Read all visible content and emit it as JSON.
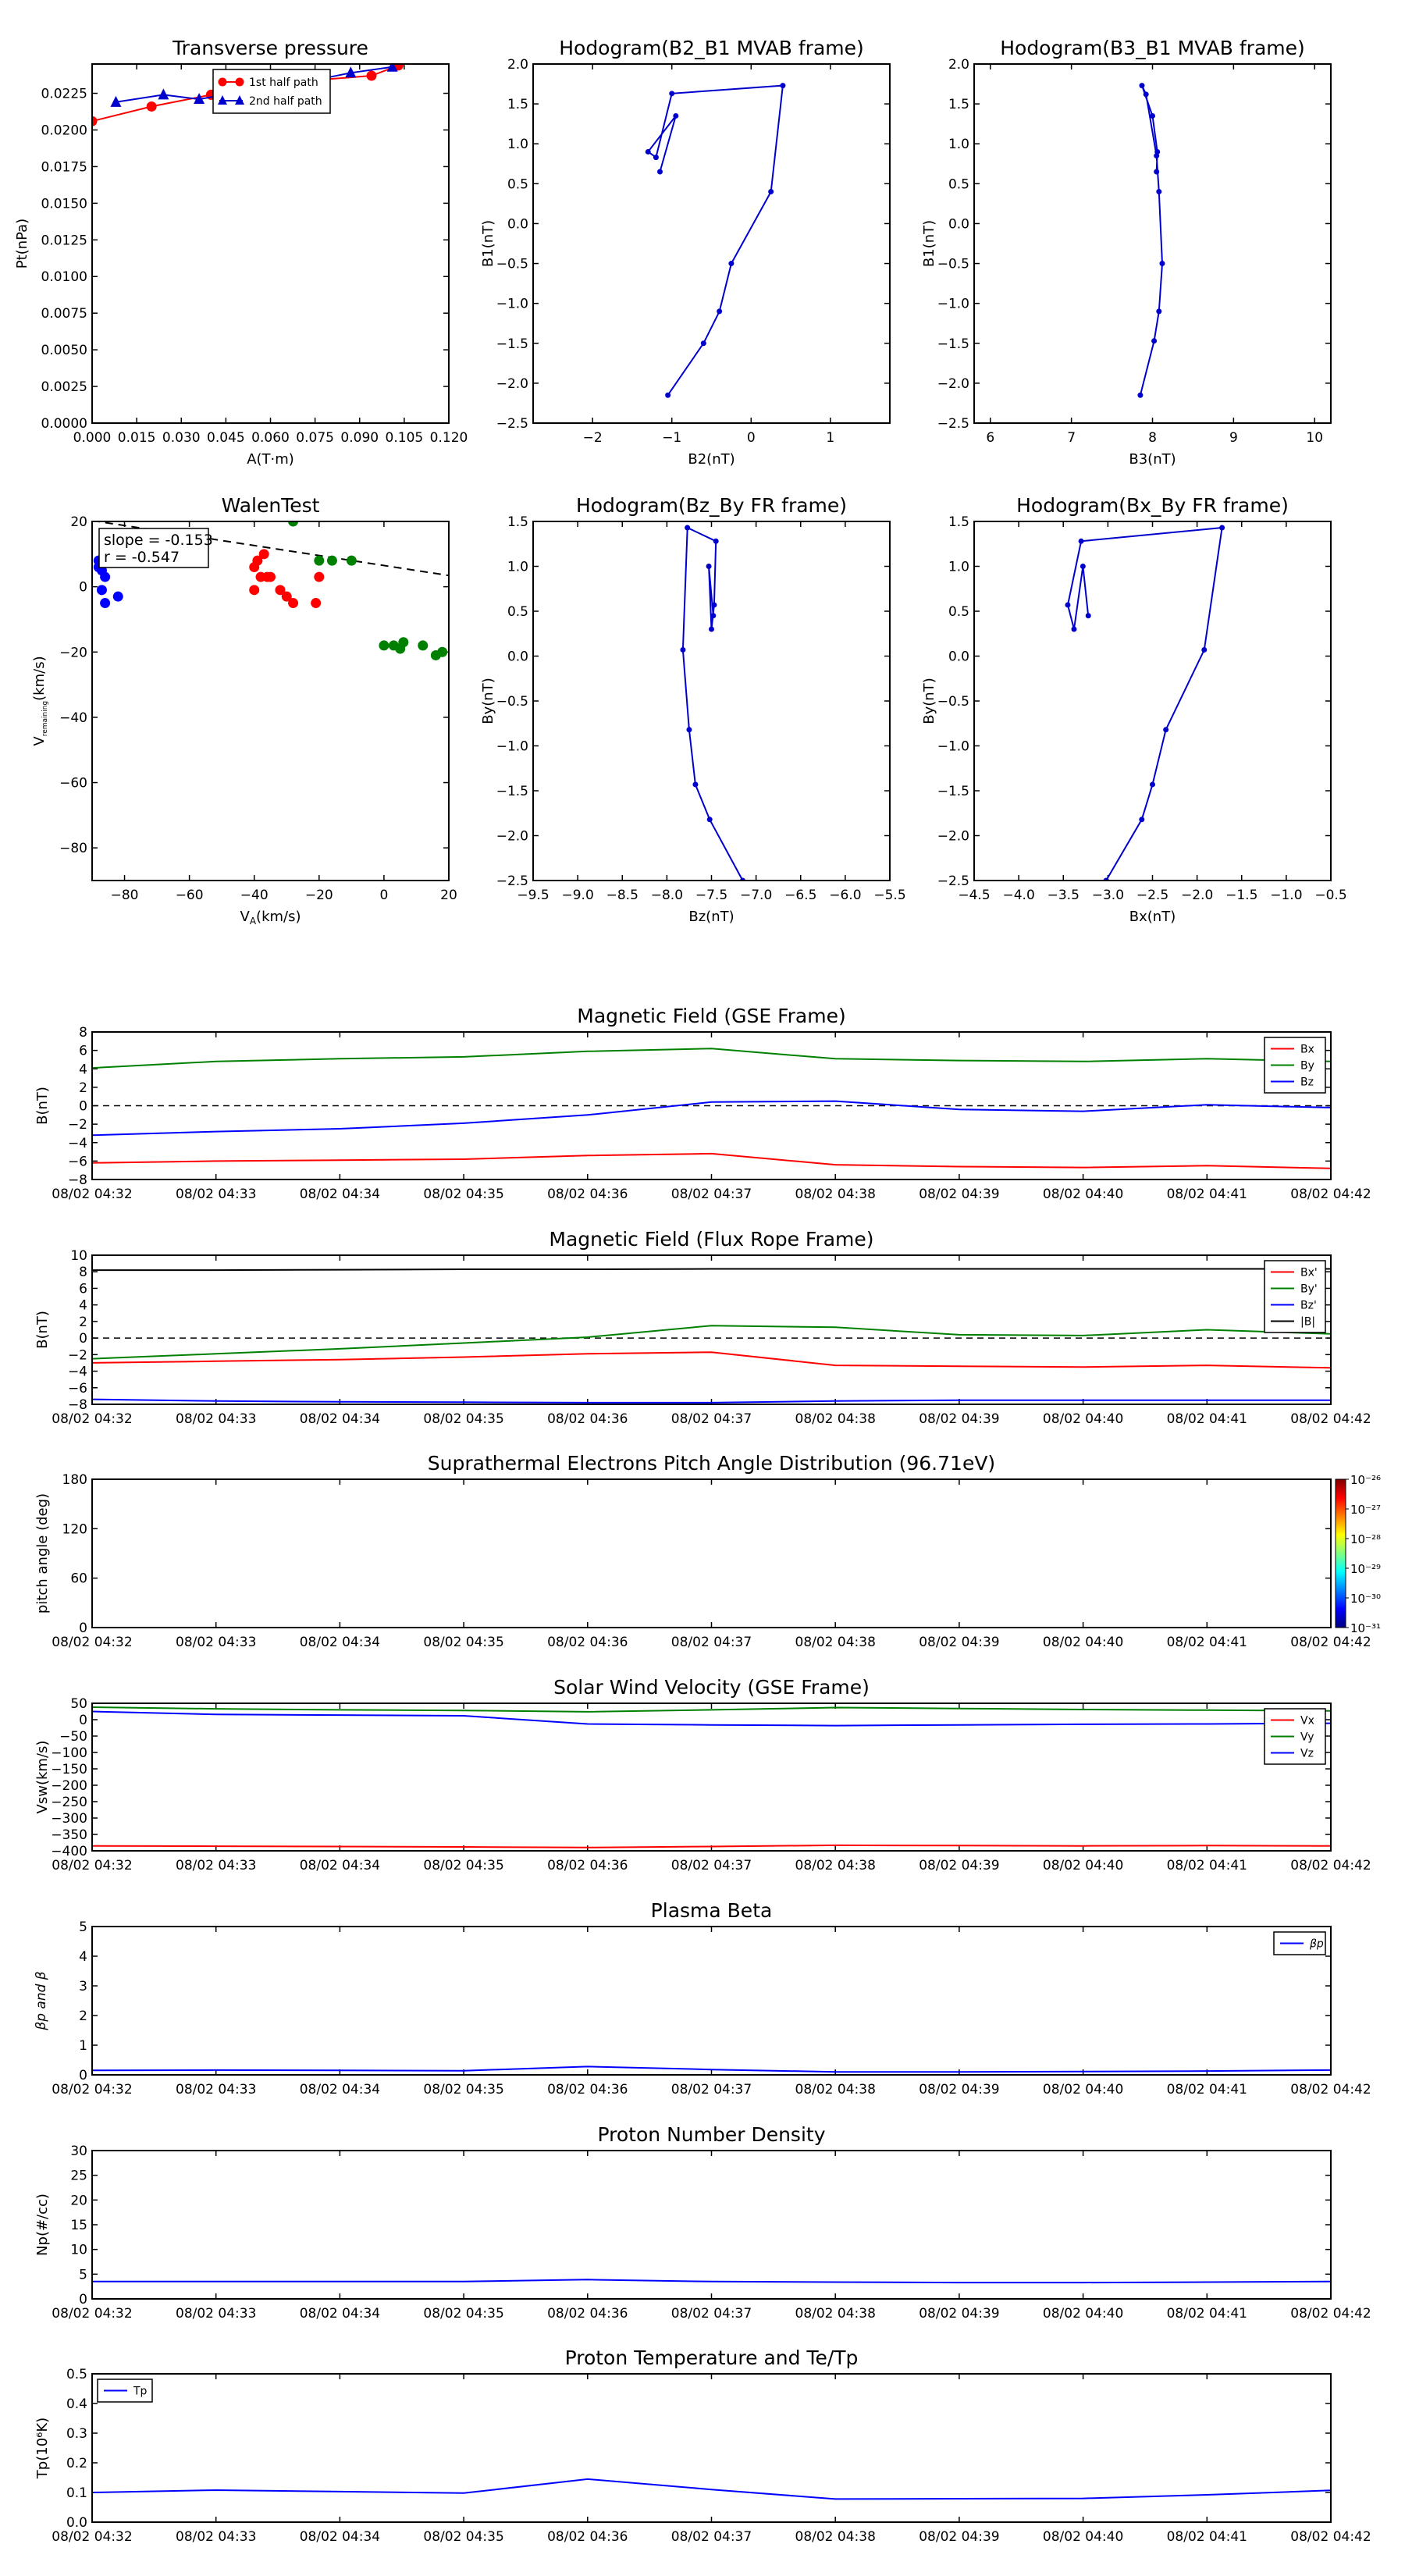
{
  "time_ticks": [
    "08/02 04:32",
    "08/02 04:33",
    "08/02 04:34",
    "08/02 04:35",
    "08/02 04:36",
    "08/02 04:37",
    "08/02 04:38",
    "08/02 04:39",
    "08/02 04:40",
    "08/02 04:41",
    "08/02 04:42"
  ],
  "chart_data": [
    {
      "id": "pt",
      "type": "line",
      "title": "Transverse pressure",
      "xlabel": "A(T·m)",
      "ylabel": "Pt(nPa)",
      "xlim": [
        0,
        0.12
      ],
      "ylim": [
        0,
        0.0245
      ],
      "xticks": [
        0,
        0.015,
        0.03,
        0.045,
        0.06,
        0.075,
        0.09,
        0.105,
        0.12
      ],
      "xtick_labels": [
        "0.000",
        "0.015",
        "0.030",
        "0.045",
        "0.060",
        "0.075",
        "0.090",
        "0.105",
        "0.120"
      ],
      "yticks": [
        0,
        0.0025,
        0.005,
        0.0075,
        0.01,
        0.0125,
        0.015,
        0.0175,
        0.02,
        0.0225
      ],
      "ytick_labels": [
        "0.0000",
        "0.0025",
        "0.0050",
        "0.0075",
        "0.0100",
        "0.0125",
        "0.0150",
        "0.0175",
        "0.0200",
        "0.0225"
      ],
      "legend": "top-center",
      "series": [
        {
          "name": "1st half path",
          "color": "#ff0000",
          "marker": "circle",
          "x": [
            0.0,
            0.02,
            0.04,
            0.06,
            0.075,
            0.094,
            0.103
          ],
          "y": [
            0.0206,
            0.0216,
            0.0224,
            0.023,
            0.0234,
            0.0237,
            0.0244
          ]
        },
        {
          "name": "2nd half path",
          "color": "#0000cc",
          "marker": "triangle",
          "x": [
            0.008,
            0.024,
            0.036,
            0.05,
            0.07,
            0.087,
            0.101
          ],
          "y": [
            0.0219,
            0.0224,
            0.0221,
            0.0226,
            0.0232,
            0.0239,
            0.0243
          ]
        }
      ]
    },
    {
      "id": "h1",
      "type": "line",
      "title": "Hodogram(B2_B1 MVAB frame)",
      "xlabel": "B2(nT)",
      "ylabel": "B1(nT)",
      "xlim": [
        -2.75,
        1.75
      ],
      "ylim": [
        -2.5,
        2.0
      ],
      "xticks": [
        -2,
        -1,
        0,
        1
      ],
      "xtick_labels": [
        "−2",
        "−1",
        "0",
        "1"
      ],
      "yticks": [
        -2.5,
        -2,
        -1.5,
        -1,
        -0.5,
        0,
        0.5,
        1,
        1.5,
        2
      ],
      "ytick_labels": [
        "−2.5",
        "−2.0",
        "−1.5",
        "−1.0",
        "−0.5",
        "0.0",
        "0.5",
        "1.0",
        "1.5",
        "2.0"
      ],
      "series": [
        {
          "color": "#0000cc",
          "marker": "dot",
          "x": [
            -1.05,
            -0.6,
            -0.4,
            -0.25,
            0.25,
            0.4,
            -1.0,
            -1.2,
            -1.3,
            -0.95,
            -1.15
          ],
          "y": [
            -2.15,
            -1.5,
            -1.1,
            -0.5,
            0.4,
            1.73,
            1.63,
            0.83,
            0.9,
            1.35,
            0.65
          ]
        }
      ]
    },
    {
      "id": "h2",
      "type": "line",
      "title": "Hodogram(B3_B1 MVAB frame)",
      "xlabel": "B3(nT)",
      "ylabel": "B1(nT)",
      "xlim": [
        5.8,
        10.2
      ],
      "ylim": [
        -2.5,
        2.0
      ],
      "xticks": [
        6,
        7,
        8,
        9,
        10
      ],
      "xtick_labels": [
        "6",
        "7",
        "8",
        "9",
        "10"
      ],
      "yticks": [
        -2.5,
        -2,
        -1.5,
        -1,
        -0.5,
        0,
        0.5,
        1,
        1.5,
        2
      ],
      "ytick_labels": [
        "−2.5",
        "−2.0",
        "−1.5",
        "−1.0",
        "−0.5",
        "0.0",
        "0.5",
        "1.0",
        "1.5",
        "2.0"
      ],
      "series": [
        {
          "color": "#0000cc",
          "marker": "dot",
          "x": [
            7.85,
            8.02,
            8.08,
            8.12,
            8.08,
            8.05,
            7.92,
            7.87,
            8.0,
            8.06,
            8.05
          ],
          "y": [
            -2.15,
            -1.47,
            -1.1,
            -0.5,
            0.4,
            0.85,
            1.62,
            1.73,
            1.35,
            0.9,
            0.65
          ]
        }
      ]
    },
    {
      "id": "walen",
      "type": "scatter",
      "title": "WalenTest",
      "xlabel": "V_A(km/s)",
      "ylabel": "V_remaining(km/s)",
      "xlim": [
        -90,
        20
      ],
      "ylim": [
        -90,
        20
      ],
      "xticks": [
        -80,
        -60,
        -40,
        -20,
        0,
        20
      ],
      "xtick_labels": [
        "−80",
        "−60",
        "−40",
        "−20",
        "0",
        "20"
      ],
      "yticks": [
        -80,
        -60,
        -40,
        -20,
        0,
        20
      ],
      "ytick_labels": [
        "−80",
        "−60",
        "−40",
        "−20",
        "0",
        "20"
      ],
      "annotation": [
        "slope = -0.153",
        "r = -0.547"
      ],
      "fit": {
        "slope": -0.153,
        "intercept": 6.5
      },
      "series": [
        {
          "color": "#0000ff",
          "x": [
            -88,
            -87,
            -86,
            -87,
            -88,
            -86,
            -82
          ],
          "y": [
            8,
            5,
            3,
            -1,
            6,
            -5,
            -3
          ]
        },
        {
          "color": "#ff0000",
          "x": [
            -40,
            -39,
            -37,
            -38,
            -36,
            -35,
            -32,
            -30,
            -28,
            -20,
            -21,
            -40
          ],
          "y": [
            6,
            8,
            10,
            3,
            3,
            3,
            -1,
            -3,
            -5,
            3,
            -5,
            -1
          ]
        },
        {
          "color": "#008000",
          "x": [
            -28,
            -20,
            -16,
            -10,
            0,
            3,
            5,
            6,
            12,
            16,
            18
          ],
          "y": [
            20,
            8,
            8,
            8,
            -18,
            -18,
            -19,
            -17,
            -18,
            -21,
            -20
          ]
        }
      ]
    },
    {
      "id": "h3",
      "type": "line",
      "title": "Hodogram(Bz_By FR frame)",
      "xlabel": "Bz(nT)",
      "ylabel": "By(nT)",
      "xlim": [
        -9.5,
        -5.5
      ],
      "ylim": [
        -2.5,
        1.5
      ],
      "xticks": [
        -9.5,
        -9,
        -8.5,
        -8,
        -7.5,
        -7,
        -6.5,
        -6,
        -5.5
      ],
      "xtick_labels": [
        "−9.5",
        "−9.0",
        "−8.5",
        "−8.0",
        "−7.5",
        "−7.0",
        "−6.5",
        "−6.0",
        "−5.5"
      ],
      "yticks": [
        -2.5,
        -2,
        -1.5,
        -1,
        -0.5,
        0,
        0.5,
        1,
        1.5
      ],
      "ytick_labels": [
        "−2.5",
        "−2.0",
        "−1.5",
        "−1.0",
        "−0.5",
        "0.0",
        "0.5",
        "1.0",
        "1.5"
      ],
      "series": [
        {
          "color": "#0000cc",
          "marker": "dot",
          "x": [
            -7.15,
            -7.52,
            -7.68,
            -7.75,
            -7.82,
            -7.77,
            -7.45,
            -7.47,
            -7.5,
            -7.53,
            -7.48
          ],
          "y": [
            -2.5,
            -1.82,
            -1.43,
            -0.82,
            0.07,
            1.43,
            1.28,
            0.57,
            0.3,
            1.0,
            0.45
          ]
        }
      ]
    },
    {
      "id": "h4",
      "type": "line",
      "title": "Hodogram(Bx_By FR frame)",
      "xlabel": "Bx(nT)",
      "ylabel": "By(nT)",
      "xlim": [
        -4.5,
        -0.5
      ],
      "ylim": [
        -2.5,
        1.5
      ],
      "xticks": [
        -4.5,
        -4,
        -3.5,
        -3,
        -2.5,
        -2,
        -1.5,
        -1,
        -0.5
      ],
      "xtick_labels": [
        "−4.5",
        "−4.0",
        "−3.5",
        "−3.0",
        "−2.5",
        "−2.0",
        "−1.5",
        "−1.0",
        "−0.5"
      ],
      "yticks": [
        -2.5,
        -2,
        -1.5,
        -1,
        -0.5,
        0,
        0.5,
        1,
        1.5
      ],
      "ytick_labels": [
        "−2.5",
        "−2.0",
        "−1.5",
        "−1.0",
        "−0.5",
        "0.0",
        "0.5",
        "1.0",
        "1.5"
      ],
      "series": [
        {
          "color": "#0000cc",
          "marker": "dot",
          "x": [
            -3.02,
            -2.62,
            -2.5,
            -2.35,
            -1.92,
            -1.72,
            -3.3,
            -3.45,
            -3.38,
            -3.28,
            -3.22
          ],
          "y": [
            -2.5,
            -1.82,
            -1.43,
            -0.82,
            0.07,
            1.43,
            1.28,
            0.57,
            0.3,
            1.0,
            0.45
          ]
        }
      ]
    },
    {
      "id": "bgse",
      "type": "line",
      "title": "Magnetic Field (GSE Frame)",
      "ylabel": "B(nT)",
      "xlim": [
        0,
        10
      ],
      "ylim": [
        -8,
        8
      ],
      "yticks": [
        -8,
        -6,
        -4,
        -2,
        0,
        2,
        4,
        6,
        8
      ],
      "ytick_labels": [
        "−8",
        "−6",
        "−4",
        "−2",
        "0",
        "2",
        "4",
        "6",
        "8"
      ],
      "zero_line": true,
      "legend": "top-right",
      "series": [
        {
          "name": "Bx",
          "color": "#ff0000",
          "values": [
            -6.2,
            -6.0,
            -5.9,
            -5.8,
            -5.4,
            -5.2,
            -6.4,
            -6.6,
            -6.7,
            -6.5,
            -6.8
          ]
        },
        {
          "name": "By",
          "color": "#008000",
          "values": [
            4.1,
            4.8,
            5.1,
            5.3,
            5.9,
            6.2,
            5.1,
            4.9,
            4.8,
            5.1,
            4.8
          ]
        },
        {
          "name": "Bz",
          "color": "#0000ff",
          "values": [
            -3.2,
            -2.8,
            -2.5,
            -1.9,
            -1.0,
            0.4,
            0.5,
            -0.4,
            -0.6,
            0.1,
            -0.2
          ]
        }
      ]
    },
    {
      "id": "bfr",
      "type": "line",
      "title": "Magnetic Field (Flux Rope Frame)",
      "ylabel": "B(nT)",
      "xlim": [
        0,
        10
      ],
      "ylim": [
        -8,
        10
      ],
      "yticks": [
        -8,
        -6,
        -4,
        -2,
        0,
        2,
        4,
        6,
        8,
        10
      ],
      "ytick_labels": [
        "−8",
        "−6",
        "−4",
        "−2",
        "0",
        "2",
        "4",
        "6",
        "8",
        "10"
      ],
      "zero_line": true,
      "legend": "top-right",
      "series": [
        {
          "name": "Bx'",
          "color": "#ff0000",
          "values": [
            -3.0,
            -2.8,
            -2.6,
            -2.3,
            -1.9,
            -1.7,
            -3.3,
            -3.4,
            -3.5,
            -3.3,
            -3.6
          ]
        },
        {
          "name": "By'",
          "color": "#008000",
          "values": [
            -2.5,
            -1.9,
            -1.3,
            -0.6,
            0.1,
            1.5,
            1.3,
            0.4,
            0.3,
            1.0,
            0.5
          ]
        },
        {
          "name": "Bz'",
          "color": "#0000ff",
          "values": [
            -7.4,
            -7.6,
            -7.7,
            -7.75,
            -7.8,
            -7.8,
            -7.6,
            -7.5,
            -7.5,
            -7.5,
            -7.5
          ]
        },
        {
          "name": "|B|",
          "color": "#000000",
          "values": [
            8.2,
            8.2,
            8.25,
            8.3,
            8.3,
            8.35,
            8.35,
            8.35,
            8.35,
            8.35,
            8.35
          ]
        }
      ]
    },
    {
      "id": "pad",
      "type": "heatmap",
      "title": "Suprathermal Electrons Pitch Angle Distribution (96.71eV)",
      "ylabel": "pitch angle (deg)",
      "xlim": [
        0,
        10
      ],
      "ylim": [
        0,
        180
      ],
      "yticks": [
        0,
        60,
        120,
        180
      ],
      "ytick_labels": [
        "0",
        "60",
        "120",
        "180"
      ],
      "colorbar_labels": [
        "10⁻²⁶",
        "10⁻²⁷",
        "10⁻²⁸",
        "10⁻²⁹",
        "10⁻³⁰",
        "10⁻³¹"
      ]
    },
    {
      "id": "vsw",
      "type": "line",
      "title": "Solar Wind Velocity (GSE Frame)",
      "ylabel": "Vsw(km/s)",
      "xlim": [
        0,
        10
      ],
      "ylim": [
        -400,
        50
      ],
      "yticks": [
        -400,
        -350,
        -300,
        -250,
        -200,
        -150,
        -100,
        -50,
        0,
        50
      ],
      "ytick_labels": [
        "−400",
        "−350",
        "−300",
        "−250",
        "−200",
        "−150",
        "−100",
        "−50",
        "0",
        "50"
      ],
      "legend": "top-right",
      "series": [
        {
          "name": "Vx",
          "color": "#ff0000",
          "values": [
            -385,
            -386,
            -387,
            -388,
            -390,
            -387,
            -383,
            -384,
            -385,
            -384,
            -385
          ]
        },
        {
          "name": "Vy",
          "color": "#008000",
          "values": [
            38,
            33,
            30,
            28,
            24,
            30,
            37,
            34,
            31,
            29,
            27
          ]
        },
        {
          "name": "Vz",
          "color": "#0000ff",
          "values": [
            25,
            16,
            14,
            12,
            -13,
            -16,
            -18,
            -16,
            -14,
            -13,
            -11
          ]
        }
      ]
    },
    {
      "id": "beta",
      "type": "line",
      "title": "Plasma Beta",
      "ylabel": "βp and β",
      "xlim": [
        0,
        10
      ],
      "ylim": [
        0,
        5
      ],
      "yticks": [
        0,
        1,
        2,
        3,
        4,
        5
      ],
      "ytick_labels": [
        "0",
        "1",
        "2",
        "3",
        "4",
        "5"
      ],
      "legend": "top-right",
      "series": [
        {
          "name": "βp",
          "color": "#0000ff",
          "values": [
            0.15,
            0.16,
            0.15,
            0.14,
            0.28,
            0.18,
            0.1,
            0.1,
            0.11,
            0.13,
            0.16
          ]
        }
      ]
    },
    {
      "id": "np",
      "type": "line",
      "title": "Proton Number Density",
      "ylabel": "Np(#/cc)",
      "xlim": [
        0,
        10
      ],
      "ylim": [
        0,
        30
      ],
      "yticks": [
        0,
        5,
        10,
        15,
        20,
        25,
        30
      ],
      "ytick_labels": [
        "0",
        "5",
        "10",
        "15",
        "20",
        "25",
        "30"
      ],
      "series": [
        {
          "color": "#0000ff",
          "values": [
            3.5,
            3.5,
            3.5,
            3.5,
            3.9,
            3.5,
            3.4,
            3.3,
            3.3,
            3.4,
            3.5
          ]
        }
      ]
    },
    {
      "id": "tp",
      "type": "line",
      "title": "Proton Temperature and Te/Tp",
      "ylabel": "Tp(10⁶K)",
      "xlim": [
        0,
        10
      ],
      "ylim": [
        0,
        0.5
      ],
      "yticks": [
        0,
        0.1,
        0.2,
        0.3,
        0.4,
        0.5
      ],
      "ytick_labels": [
        "0.0",
        "0.1",
        "0.2",
        "0.3",
        "0.4",
        "0.5"
      ],
      "legend": "top-left",
      "series": [
        {
          "name": "Tp",
          "color": "#0000ff",
          "values": [
            0.1,
            0.108,
            0.103,
            0.098,
            0.145,
            0.11,
            0.078,
            0.079,
            0.08,
            0.092,
            0.107
          ]
        }
      ]
    }
  ]
}
